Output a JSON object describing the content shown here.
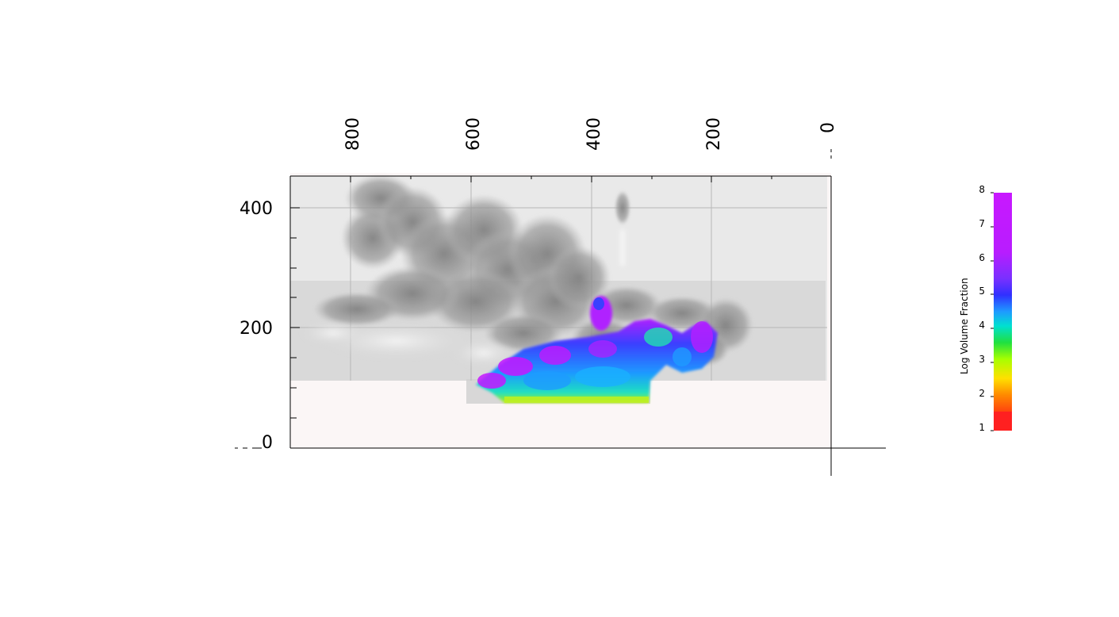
{
  "axes": {
    "x_ticks": [
      "800",
      "600",
      "400",
      "200",
      "0"
    ],
    "y_ticks": [
      "400",
      "200",
      "0"
    ]
  },
  "colorbar": {
    "label": "Log Volume Fraction",
    "ticks": [
      "8",
      "7",
      "6",
      "5",
      "4",
      "3",
      "2",
      "1"
    ],
    "colors": [
      "#ff2020",
      "#ff7a00",
      "#ffd800",
      "#b8ff00",
      "#20e040",
      "#00e8e8",
      "#1e9bff",
      "#3030ff",
      "#8c2cff",
      "#c41aff",
      "#d000ff"
    ]
  }
}
